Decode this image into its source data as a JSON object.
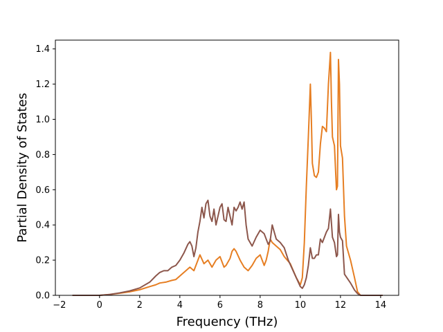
{
  "chart_data": {
    "type": "line",
    "title": "",
    "xlabel": "Frequency (THz)",
    "ylabel": "Partial Density of States",
    "xlim": [
      -2.2,
      14.9
    ],
    "ylim": [
      0.0,
      1.45
    ],
    "xticks": [
      -2,
      0,
      2,
      4,
      6,
      8,
      10,
      12,
      14
    ],
    "xtick_labels": [
      "−2",
      "0",
      "2",
      "4",
      "6",
      "8",
      "10",
      "12",
      "14"
    ],
    "yticks": [
      0.0,
      0.2,
      0.4,
      0.6,
      0.8,
      1.0,
      1.2,
      1.4
    ],
    "ytick_labels": [
      "0.0",
      "0.2",
      "0.4",
      "0.6",
      "0.8",
      "1.0",
      "1.2",
      "1.4"
    ],
    "grid": false,
    "legend": false,
    "series": [
      {
        "color": "#e67e22",
        "x": [
          -1.35,
          -1.0,
          0.0,
          0.5,
          1.0,
          1.5,
          2.0,
          2.5,
          2.8,
          3.0,
          3.3,
          3.6,
          3.8,
          4.0,
          4.3,
          4.5,
          4.7,
          4.9,
          5.0,
          5.2,
          5.4,
          5.6,
          5.8,
          6.0,
          6.2,
          6.3,
          6.5,
          6.6,
          6.7,
          6.8,
          7.0,
          7.2,
          7.4,
          7.6,
          7.8,
          8.0,
          8.2,
          8.3,
          8.4,
          8.5,
          8.6,
          8.8,
          9.0,
          9.2,
          9.5,
          9.8,
          10.0,
          10.1,
          10.2,
          10.3,
          10.4,
          10.5,
          10.55,
          10.6,
          10.7,
          10.8,
          10.9,
          11.0,
          11.1,
          11.2,
          11.3,
          11.4,
          11.5,
          11.55,
          11.6,
          11.7,
          11.8,
          11.85,
          11.9,
          11.95,
          12.0,
          12.1,
          12.2,
          12.3,
          12.5,
          12.7,
          12.85,
          13.0,
          14.1
        ],
        "y": [
          0.0,
          0.0,
          0.0,
          0.005,
          0.012,
          0.02,
          0.032,
          0.05,
          0.06,
          0.07,
          0.075,
          0.085,
          0.09,
          0.11,
          0.14,
          0.16,
          0.14,
          0.2,
          0.23,
          0.18,
          0.2,
          0.16,
          0.2,
          0.22,
          0.16,
          0.17,
          0.21,
          0.25,
          0.265,
          0.25,
          0.2,
          0.16,
          0.14,
          0.17,
          0.21,
          0.23,
          0.17,
          0.2,
          0.25,
          0.32,
          0.3,
          0.28,
          0.26,
          0.22,
          0.18,
          0.1,
          0.06,
          0.1,
          0.3,
          0.62,
          0.9,
          1.2,
          1.0,
          0.75,
          0.68,
          0.67,
          0.7,
          0.86,
          0.96,
          0.95,
          0.93,
          1.2,
          1.38,
          1.1,
          0.9,
          0.85,
          0.6,
          0.62,
          1.34,
          1.2,
          0.85,
          0.78,
          0.45,
          0.28,
          0.2,
          0.1,
          0.02,
          0.0,
          0.0
        ]
      },
      {
        "color": "#8c564b",
        "x": [
          -1.35,
          -1.0,
          0.0,
          0.5,
          1.0,
          1.5,
          2.0,
          2.5,
          2.8,
          3.0,
          3.2,
          3.4,
          3.6,
          3.8,
          4.0,
          4.2,
          4.4,
          4.5,
          4.6,
          4.7,
          4.8,
          4.9,
          5.0,
          5.1,
          5.2,
          5.3,
          5.4,
          5.5,
          5.6,
          5.7,
          5.8,
          5.9,
          6.0,
          6.1,
          6.2,
          6.3,
          6.4,
          6.5,
          6.6,
          6.7,
          6.8,
          6.9,
          7.0,
          7.1,
          7.2,
          7.3,
          7.4,
          7.6,
          7.8,
          8.0,
          8.2,
          8.4,
          8.5,
          8.6,
          8.7,
          8.8,
          9.0,
          9.2,
          9.4,
          9.6,
          9.8,
          10.0,
          10.1,
          10.2,
          10.3,
          10.4,
          10.5,
          10.6,
          10.7,
          10.8,
          10.9,
          11.0,
          11.1,
          11.2,
          11.3,
          11.4,
          11.5,
          11.6,
          11.7,
          11.8,
          11.85,
          11.9,
          11.95,
          12.0,
          12.1,
          12.2,
          12.5,
          12.7,
          12.85,
          13.0,
          14.1
        ],
        "y": [
          0.0,
          0.0,
          0.0,
          0.005,
          0.014,
          0.025,
          0.042,
          0.075,
          0.11,
          0.13,
          0.14,
          0.14,
          0.16,
          0.17,
          0.2,
          0.24,
          0.29,
          0.305,
          0.28,
          0.22,
          0.27,
          0.36,
          0.42,
          0.5,
          0.44,
          0.52,
          0.54,
          0.45,
          0.42,
          0.49,
          0.4,
          0.45,
          0.5,
          0.52,
          0.43,
          0.42,
          0.5,
          0.45,
          0.4,
          0.5,
          0.48,
          0.5,
          0.53,
          0.49,
          0.53,
          0.4,
          0.32,
          0.28,
          0.33,
          0.37,
          0.35,
          0.29,
          0.31,
          0.4,
          0.36,
          0.32,
          0.3,
          0.27,
          0.2,
          0.15,
          0.1,
          0.05,
          0.04,
          0.06,
          0.1,
          0.17,
          0.27,
          0.21,
          0.21,
          0.23,
          0.23,
          0.32,
          0.3,
          0.33,
          0.36,
          0.38,
          0.49,
          0.33,
          0.3,
          0.22,
          0.23,
          0.46,
          0.36,
          0.33,
          0.31,
          0.12,
          0.07,
          0.03,
          0.01,
          0.0,
          0.0
        ]
      }
    ]
  }
}
